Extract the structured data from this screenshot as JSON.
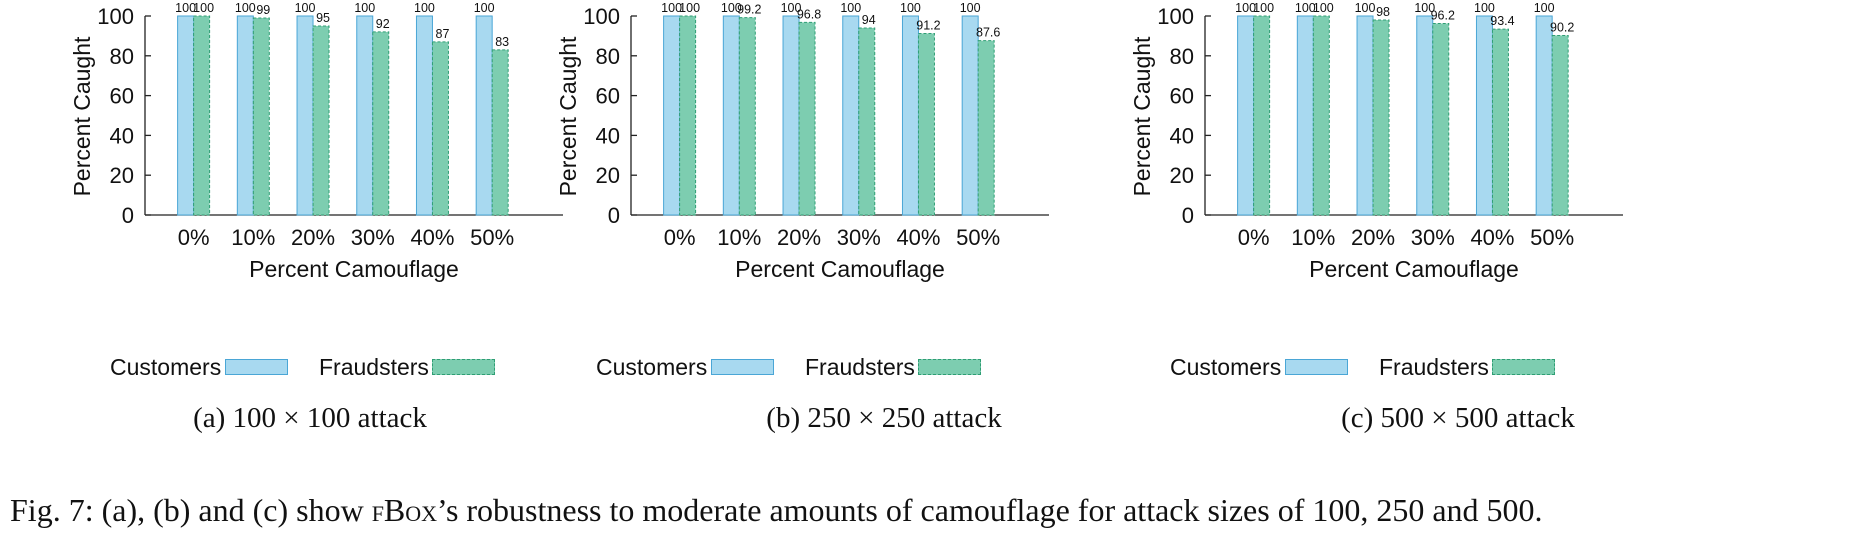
{
  "colors": {
    "customers": "#a8d9f0",
    "customers_edge": "#4aa6d6",
    "fraudsters": "#7dcdb0",
    "fraudsters_edge": "#2f9e74"
  },
  "chart_data": [
    {
      "type": "bar",
      "categories": [
        "0%",
        "10%",
        "20%",
        "30%",
        "40%",
        "50%"
      ],
      "series": [
        {
          "name": "Customers",
          "values": [
            100,
            100,
            100,
            100,
            100,
            100
          ],
          "labels": [
            "100",
            "100",
            "100",
            "100",
            "100",
            "100"
          ]
        },
        {
          "name": "Fraudsters",
          "values": [
            100,
            99,
            95,
            92,
            87,
            83
          ],
          "labels": [
            "100",
            "99",
            "95",
            "92",
            "87",
            "83"
          ]
        }
      ],
      "xlabel": "Percent Camouflage",
      "ylabel": "Percent Caught",
      "ylim": [
        0,
        100
      ],
      "yticks": [
        "0",
        "20",
        "40",
        "60",
        "80",
        "100"
      ],
      "legend_position": "bottom",
      "grid": false,
      "caption": "(a) 100 × 100 attack"
    },
    {
      "type": "bar",
      "categories": [
        "0%",
        "10%",
        "20%",
        "30%",
        "40%",
        "50%"
      ],
      "series": [
        {
          "name": "Customers",
          "values": [
            100,
            100,
            100,
            100,
            100,
            100
          ],
          "labels": [
            "100",
            "100",
            "100",
            "100",
            "100",
            "100"
          ]
        },
        {
          "name": "Fraudsters",
          "values": [
            100,
            99.2,
            96.8,
            94,
            91.2,
            87.6
          ],
          "labels": [
            "100",
            "99.2",
            "96.8",
            "94",
            "91.2",
            "87.6"
          ]
        }
      ],
      "xlabel": "Percent Camouflage",
      "ylabel": "Percent Caught",
      "ylim": [
        0,
        100
      ],
      "yticks": [
        "0",
        "20",
        "40",
        "60",
        "80",
        "100"
      ],
      "legend_position": "bottom",
      "grid": false,
      "caption": "(b) 250 × 250 attack"
    },
    {
      "type": "bar",
      "categories": [
        "0%",
        "10%",
        "20%",
        "30%",
        "40%",
        "50%"
      ],
      "series": [
        {
          "name": "Customers",
          "values": [
            100,
            100,
            100,
            100,
            100,
            100
          ],
          "labels": [
            "100",
            "100",
            "100",
            "100",
            "100",
            "100"
          ]
        },
        {
          "name": "Fraudsters",
          "values": [
            100,
            100,
            98,
            96.2,
            93.4,
            90.2
          ],
          "labels": [
            "100",
            "100",
            "98",
            "96.2",
            "93.4",
            "90.2"
          ]
        }
      ],
      "xlabel": "Percent Camouflage",
      "ylabel": "Percent Caught",
      "ylim": [
        0,
        100
      ],
      "yticks": [
        "0",
        "20",
        "40",
        "60",
        "80",
        "100"
      ],
      "legend_position": "bottom",
      "grid": false,
      "caption": "(c) 500 × 500 attack"
    }
  ],
  "figure_caption": {
    "prefix": "Fig. 7: (a), (b) and (c) show ",
    "method": "fBox",
    "suffix": "’s robustness to moderate amounts of camouflage for attack sizes of 100, 250 and 500."
  }
}
